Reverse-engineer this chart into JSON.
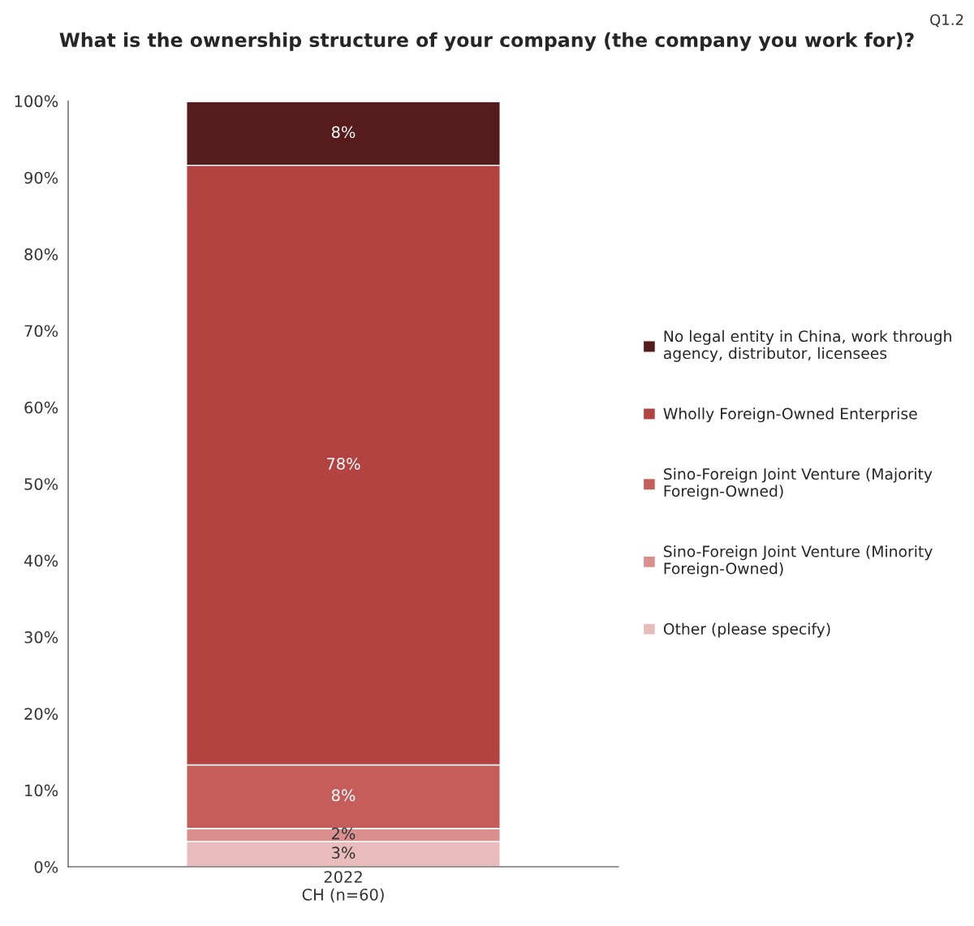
{
  "chart_data": {
    "type": "bar",
    "stacked": true,
    "title": "What is the ownership structure of your company (the company you work for)?",
    "annotations": [
      "Q1.2"
    ],
    "categories": [
      "2022\nCH (n=60)"
    ],
    "series": [
      {
        "name": "Other (please specify)",
        "color": "#e8bcbb",
        "values": [
          3.3
        ],
        "value_labels": [
          "3%"
        ]
      },
      {
        "name": "Sino-Foreign Joint Venture (Minority Foreign-Owned)",
        "color": "#d98f8d",
        "values": [
          1.7
        ],
        "value_labels": [
          "2%"
        ]
      },
      {
        "name": "Sino-Foreign Joint Venture (Majority Foreign-Owned)",
        "color": "#c55e5b",
        "values": [
          8.3
        ],
        "value_labels": [
          "8%"
        ]
      },
      {
        "name": "Wholly Foreign-Owned Enterprise",
        "color": "#b34340",
        "values": [
          78.3
        ],
        "value_labels": [
          "78%"
        ]
      },
      {
        "name": "No legal entity in China, work through agency, distributor, licensees",
        "color": "#561c1c",
        "values": [
          8.3
        ],
        "value_labels": [
          "8%"
        ]
      }
    ],
    "ylim": [
      0,
      100
    ],
    "yticks": [
      {
        "value": 0,
        "label": "0%"
      },
      {
        "value": 10,
        "label": "10%"
      },
      {
        "value": 20,
        "label": "20%"
      },
      {
        "value": 30,
        "label": "30%"
      },
      {
        "value": 40,
        "label": "40%"
      },
      {
        "value": 50,
        "label": "50%"
      },
      {
        "value": 60,
        "label": "60%"
      },
      {
        "value": 70,
        "label": "70%"
      },
      {
        "value": 80,
        "label": "80%"
      },
      {
        "value": 90,
        "label": "90%"
      },
      {
        "value": 100,
        "label": "100%"
      }
    ],
    "legend": "right"
  }
}
